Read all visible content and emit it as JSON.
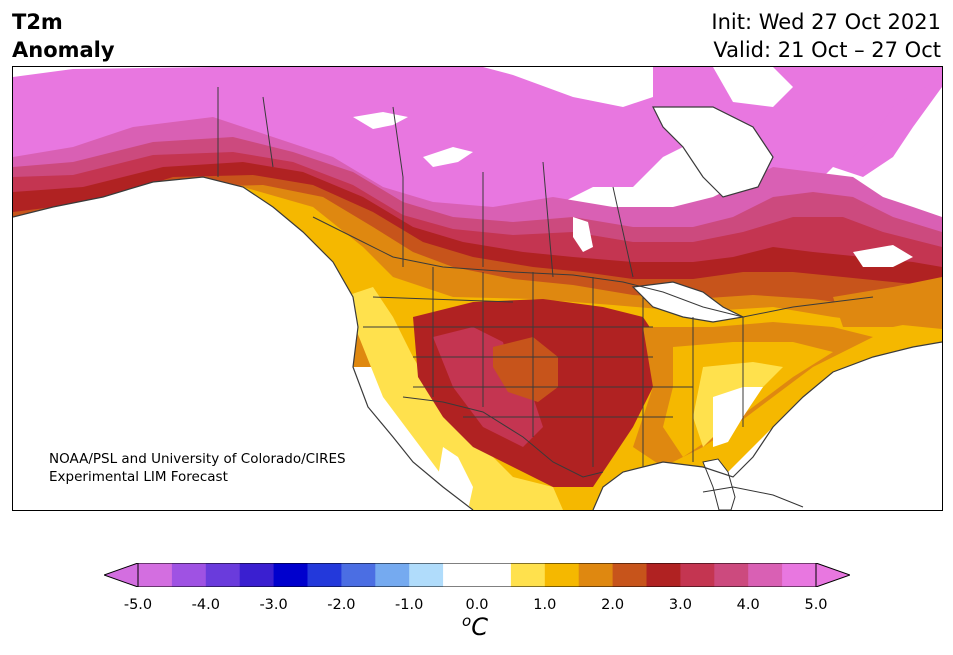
{
  "title": {
    "left_line1": "T2m",
    "left_line2": "Anomaly",
    "right_line1": "Init: Wed 27 Oct 2021",
    "right_line2": "Valid: 21 Oct – 27 Oct"
  },
  "credit": {
    "line1": "NOAA/PSL and University of Colorado/CIRES",
    "line2": "Experimental LIM Forecast"
  },
  "colorbar": {
    "ticks": [
      "-5.0",
      "-4.0",
      "-3.0",
      "-2.0",
      "-1.0",
      "0.0",
      "1.0",
      "2.0",
      "3.0",
      "4.0",
      "5.0"
    ],
    "units_base": "C",
    "units_sup": "o",
    "colors": [
      "#d36ee0",
      "#9f52e3",
      "#6a3bdc",
      "#3a1fd0",
      "#0000cd",
      "#2339db",
      "#4b6ee3",
      "#75aaf0",
      "#b0dcfb",
      "#ffffff",
      "#ffffff",
      "#ffe14d",
      "#f5b800",
      "#df8810",
      "#c7541b",
      "#b02222",
      "#c43551",
      "#cc4a7e",
      "#d960b4",
      "#e877e0"
    ],
    "extend_low": "#d36ee0",
    "extend_high": "#e877e0"
  },
  "map": {
    "region": "North America",
    "colors": {
      "ocean": "#ffffff",
      "pos_1": "#ffe14d",
      "pos_1_5": "#f5b800",
      "pos_2": "#df8810",
      "pos_2_5": "#c7541b",
      "pos_3": "#b02222",
      "pos_3_5": "#c43551",
      "pos_4": "#cc4a7e",
      "pos_4_5": "#d960b4",
      "pos_5": "#e877e0"
    }
  }
}
